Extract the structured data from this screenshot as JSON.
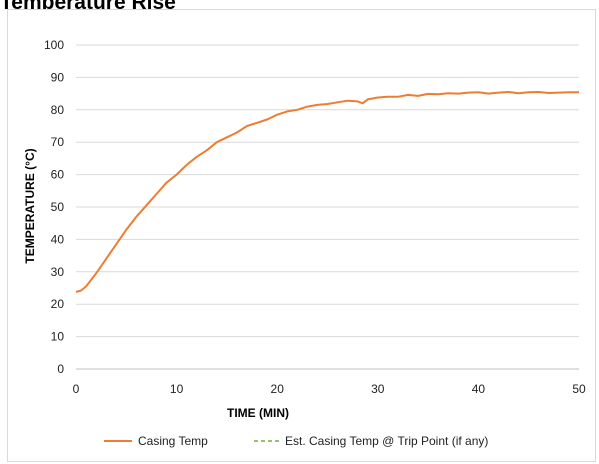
{
  "page": {
    "title": "Temperature Rise"
  },
  "chart_data": {
    "type": "line",
    "title": "",
    "xlabel": "TIME (MIN)",
    "ylabel": "TEMPERATURE (°C)",
    "xlim": [
      0,
      50
    ],
    "ylim": [
      0,
      100
    ],
    "xticks": [
      0,
      10,
      20,
      30,
      40,
      50
    ],
    "yticks": [
      0,
      10,
      20,
      30,
      40,
      50,
      60,
      70,
      80,
      90,
      100
    ],
    "grid": "horizontal",
    "legend_position": "bottom",
    "series": [
      {
        "name": "Casing Temp",
        "color": "#ED7D31",
        "style": "solid",
        "x": [
          0,
          0.5,
          1,
          1.5,
          2,
          3,
          4,
          5,
          6,
          7,
          8,
          9,
          10,
          11,
          12,
          13,
          14,
          15,
          16,
          17,
          18,
          19,
          20,
          21,
          22,
          23,
          24,
          25,
          26,
          27,
          28,
          28.5,
          29,
          30,
          31,
          32,
          33,
          34,
          35,
          36,
          37,
          38,
          39,
          40,
          41,
          42,
          43,
          44,
          45,
          46,
          47,
          48,
          49,
          50
        ],
        "y": [
          23.8,
          24.2,
          25.5,
          27.5,
          29.5,
          34,
          38.5,
          43,
          47,
          50.5,
          54,
          57.5,
          60,
          63,
          65.5,
          67.5,
          70,
          71.5,
          73,
          75,
          76,
          77,
          78.5,
          79.5,
          80,
          81,
          81.5,
          81.8,
          82.3,
          82.8,
          82.6,
          82,
          83.2,
          83.8,
          84,
          84,
          84.6,
          84.3,
          84.9,
          84.8,
          85.1,
          85,
          85.3,
          85.4,
          85,
          85.3,
          85.5,
          85.1,
          85.4,
          85.5,
          85.2,
          85.3,
          85.4,
          85.4
        ]
      },
      {
        "name": "Est. Casing Temp @ Trip Point (if any)",
        "color": "#70AD47",
        "style": "dashed",
        "x": [],
        "y": []
      }
    ]
  }
}
